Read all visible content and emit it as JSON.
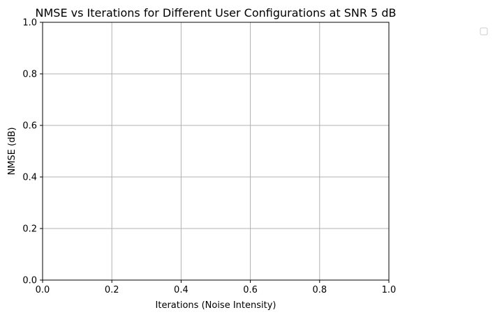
{
  "chart_data": {
    "type": "line",
    "title": "NMSE vs Iterations for Different User Configurations at SNR 5 dB",
    "xlabel": "Iterations (Noise Intensity)",
    "ylabel": "NMSE (dB)",
    "xlim": [
      0.0,
      1.0
    ],
    "ylim": [
      0.0,
      1.0
    ],
    "xticks": [
      "0.0",
      "0.2",
      "0.4",
      "0.6",
      "0.8",
      "1.0"
    ],
    "yticks": [
      "0.0",
      "0.2",
      "0.4",
      "0.6",
      "0.8",
      "1.0"
    ],
    "grid": true,
    "legend": "top-right, outside plot area, empty",
    "series": []
  },
  "colors": {
    "grid": "#b0b0b0",
    "axes": "#000000",
    "legend_border": "#cccccc"
  }
}
